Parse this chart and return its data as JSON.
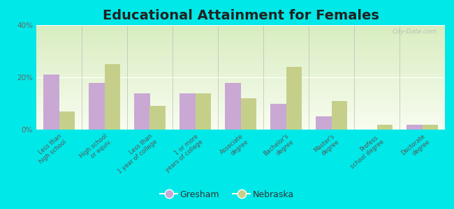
{
  "title": "Educational Attainment for Females",
  "categories": [
    "Less than\nhigh school",
    "High school\nor equiv.",
    "Less than\n1 year of college",
    "1 or more\nyears of college",
    "Associate\ndegree",
    "Bachelor's\ndegree",
    "Master's\ndegree",
    "Profess.\nschool degree",
    "Doctorate\ndegree"
  ],
  "gresham": [
    21,
    18,
    14,
    14,
    18,
    10,
    5,
    0,
    2
  ],
  "nebraska": [
    7,
    25,
    9,
    14,
    12,
    24,
    11,
    2,
    2
  ],
  "gresham_color": "#c9a8d4",
  "nebraska_color": "#c5cf8a",
  "outer_bg": "#00e8e8",
  "plot_bg": "#eef5e0",
  "ylim": [
    0,
    40
  ],
  "yticks": [
    0,
    20,
    40
  ],
  "ytick_labels": [
    "0%",
    "20%",
    "40%"
  ],
  "bar_width": 0.35,
  "title_fontsize": 14,
  "legend_labels": [
    "Gresham",
    "Nebraska"
  ]
}
